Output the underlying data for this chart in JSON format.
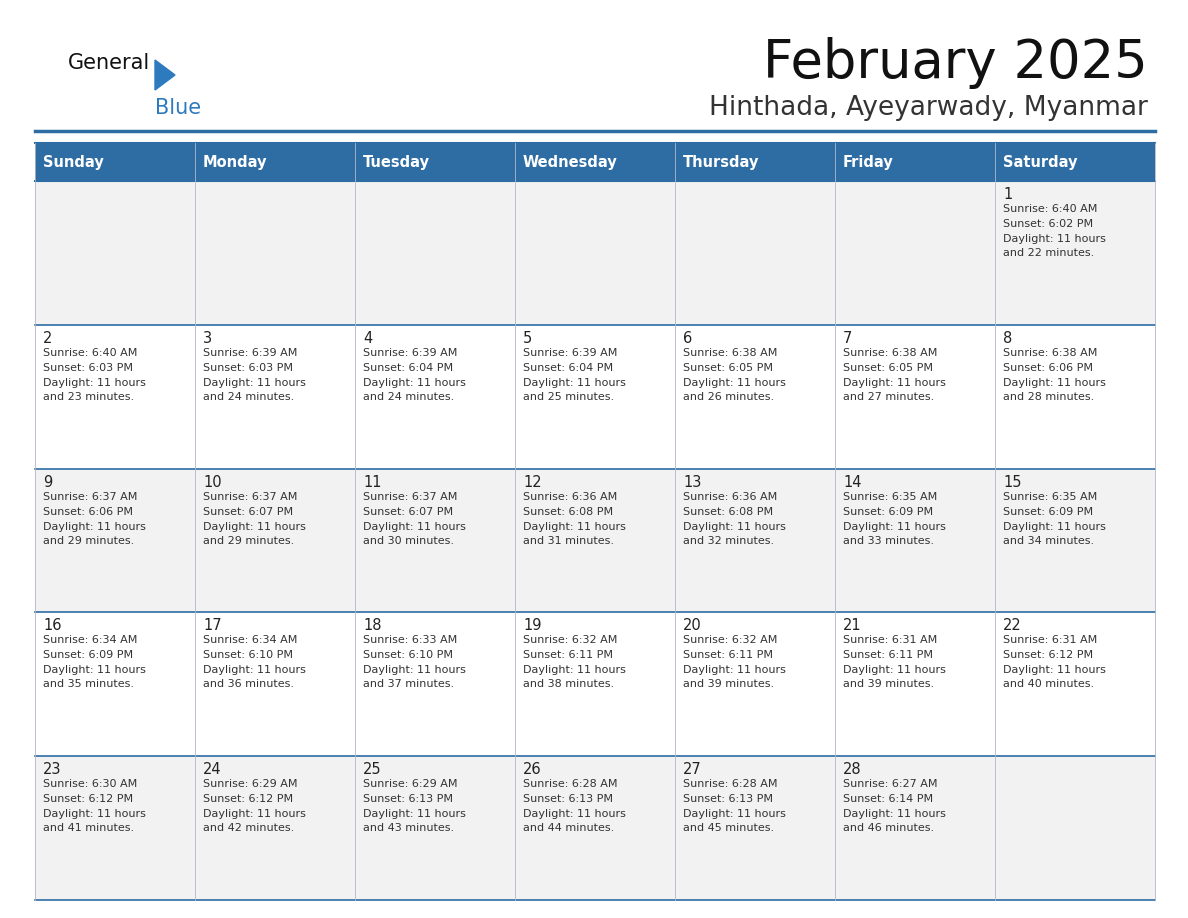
{
  "title": "February 2025",
  "subtitle": "Hinthada, Ayeyarwady, Myanmar",
  "header_bg": "#2e6da4",
  "header_text_color": "#ffffff",
  "day_names": [
    "Sunday",
    "Monday",
    "Tuesday",
    "Wednesday",
    "Thursday",
    "Friday",
    "Saturday"
  ],
  "cell_bg_odd": "#f2f2f2",
  "cell_bg_even": "#ffffff",
  "border_color": "#2e6da4",
  "cell_border_color": "#b0b8c8",
  "text_color": "#333333",
  "date_color": "#222222",
  "logo_general_color": "#111111",
  "logo_blue_color": "#2e7abf",
  "days": [
    {
      "date": 1,
      "row": 0,
      "col": 6,
      "sunrise": "6:40 AM",
      "sunset": "6:02 PM",
      "daylight": "11 hours and 22 minutes."
    },
    {
      "date": 2,
      "row": 1,
      "col": 0,
      "sunrise": "6:40 AM",
      "sunset": "6:03 PM",
      "daylight": "11 hours and 23 minutes."
    },
    {
      "date": 3,
      "row": 1,
      "col": 1,
      "sunrise": "6:39 AM",
      "sunset": "6:03 PM",
      "daylight": "11 hours and 24 minutes."
    },
    {
      "date": 4,
      "row": 1,
      "col": 2,
      "sunrise": "6:39 AM",
      "sunset": "6:04 PM",
      "daylight": "11 hours and 24 minutes."
    },
    {
      "date": 5,
      "row": 1,
      "col": 3,
      "sunrise": "6:39 AM",
      "sunset": "6:04 PM",
      "daylight": "11 hours and 25 minutes."
    },
    {
      "date": 6,
      "row": 1,
      "col": 4,
      "sunrise": "6:38 AM",
      "sunset": "6:05 PM",
      "daylight": "11 hours and 26 minutes."
    },
    {
      "date": 7,
      "row": 1,
      "col": 5,
      "sunrise": "6:38 AM",
      "sunset": "6:05 PM",
      "daylight": "11 hours and 27 minutes."
    },
    {
      "date": 8,
      "row": 1,
      "col": 6,
      "sunrise": "6:38 AM",
      "sunset": "6:06 PM",
      "daylight": "11 hours and 28 minutes."
    },
    {
      "date": 9,
      "row": 2,
      "col": 0,
      "sunrise": "6:37 AM",
      "sunset": "6:06 PM",
      "daylight": "11 hours and 29 minutes."
    },
    {
      "date": 10,
      "row": 2,
      "col": 1,
      "sunrise": "6:37 AM",
      "sunset": "6:07 PM",
      "daylight": "11 hours and 29 minutes."
    },
    {
      "date": 11,
      "row": 2,
      "col": 2,
      "sunrise": "6:37 AM",
      "sunset": "6:07 PM",
      "daylight": "11 hours and 30 minutes."
    },
    {
      "date": 12,
      "row": 2,
      "col": 3,
      "sunrise": "6:36 AM",
      "sunset": "6:08 PM",
      "daylight": "11 hours and 31 minutes."
    },
    {
      "date": 13,
      "row": 2,
      "col": 4,
      "sunrise": "6:36 AM",
      "sunset": "6:08 PM",
      "daylight": "11 hours and 32 minutes."
    },
    {
      "date": 14,
      "row": 2,
      "col": 5,
      "sunrise": "6:35 AM",
      "sunset": "6:09 PM",
      "daylight": "11 hours and 33 minutes."
    },
    {
      "date": 15,
      "row": 2,
      "col": 6,
      "sunrise": "6:35 AM",
      "sunset": "6:09 PM",
      "daylight": "11 hours and 34 minutes."
    },
    {
      "date": 16,
      "row": 3,
      "col": 0,
      "sunrise": "6:34 AM",
      "sunset": "6:09 PM",
      "daylight": "11 hours and 35 minutes."
    },
    {
      "date": 17,
      "row": 3,
      "col": 1,
      "sunrise": "6:34 AM",
      "sunset": "6:10 PM",
      "daylight": "11 hours and 36 minutes."
    },
    {
      "date": 18,
      "row": 3,
      "col": 2,
      "sunrise": "6:33 AM",
      "sunset": "6:10 PM",
      "daylight": "11 hours and 37 minutes."
    },
    {
      "date": 19,
      "row": 3,
      "col": 3,
      "sunrise": "6:32 AM",
      "sunset": "6:11 PM",
      "daylight": "11 hours and 38 minutes."
    },
    {
      "date": 20,
      "row": 3,
      "col": 4,
      "sunrise": "6:32 AM",
      "sunset": "6:11 PM",
      "daylight": "11 hours and 39 minutes."
    },
    {
      "date": 21,
      "row": 3,
      "col": 5,
      "sunrise": "6:31 AM",
      "sunset": "6:11 PM",
      "daylight": "11 hours and 39 minutes."
    },
    {
      "date": 22,
      "row": 3,
      "col": 6,
      "sunrise": "6:31 AM",
      "sunset": "6:12 PM",
      "daylight": "11 hours and 40 minutes."
    },
    {
      "date": 23,
      "row": 4,
      "col": 0,
      "sunrise": "6:30 AM",
      "sunset": "6:12 PM",
      "daylight": "11 hours and 41 minutes."
    },
    {
      "date": 24,
      "row": 4,
      "col": 1,
      "sunrise": "6:29 AM",
      "sunset": "6:12 PM",
      "daylight": "11 hours and 42 minutes."
    },
    {
      "date": 25,
      "row": 4,
      "col": 2,
      "sunrise": "6:29 AM",
      "sunset": "6:13 PM",
      "daylight": "11 hours and 43 minutes."
    },
    {
      "date": 26,
      "row": 4,
      "col": 3,
      "sunrise": "6:28 AM",
      "sunset": "6:13 PM",
      "daylight": "11 hours and 44 minutes."
    },
    {
      "date": 27,
      "row": 4,
      "col": 4,
      "sunrise": "6:28 AM",
      "sunset": "6:13 PM",
      "daylight": "11 hours and 45 minutes."
    },
    {
      "date": 28,
      "row": 4,
      "col": 5,
      "sunrise": "6:27 AM",
      "sunset": "6:14 PM",
      "daylight": "11 hours and 46 minutes."
    }
  ]
}
